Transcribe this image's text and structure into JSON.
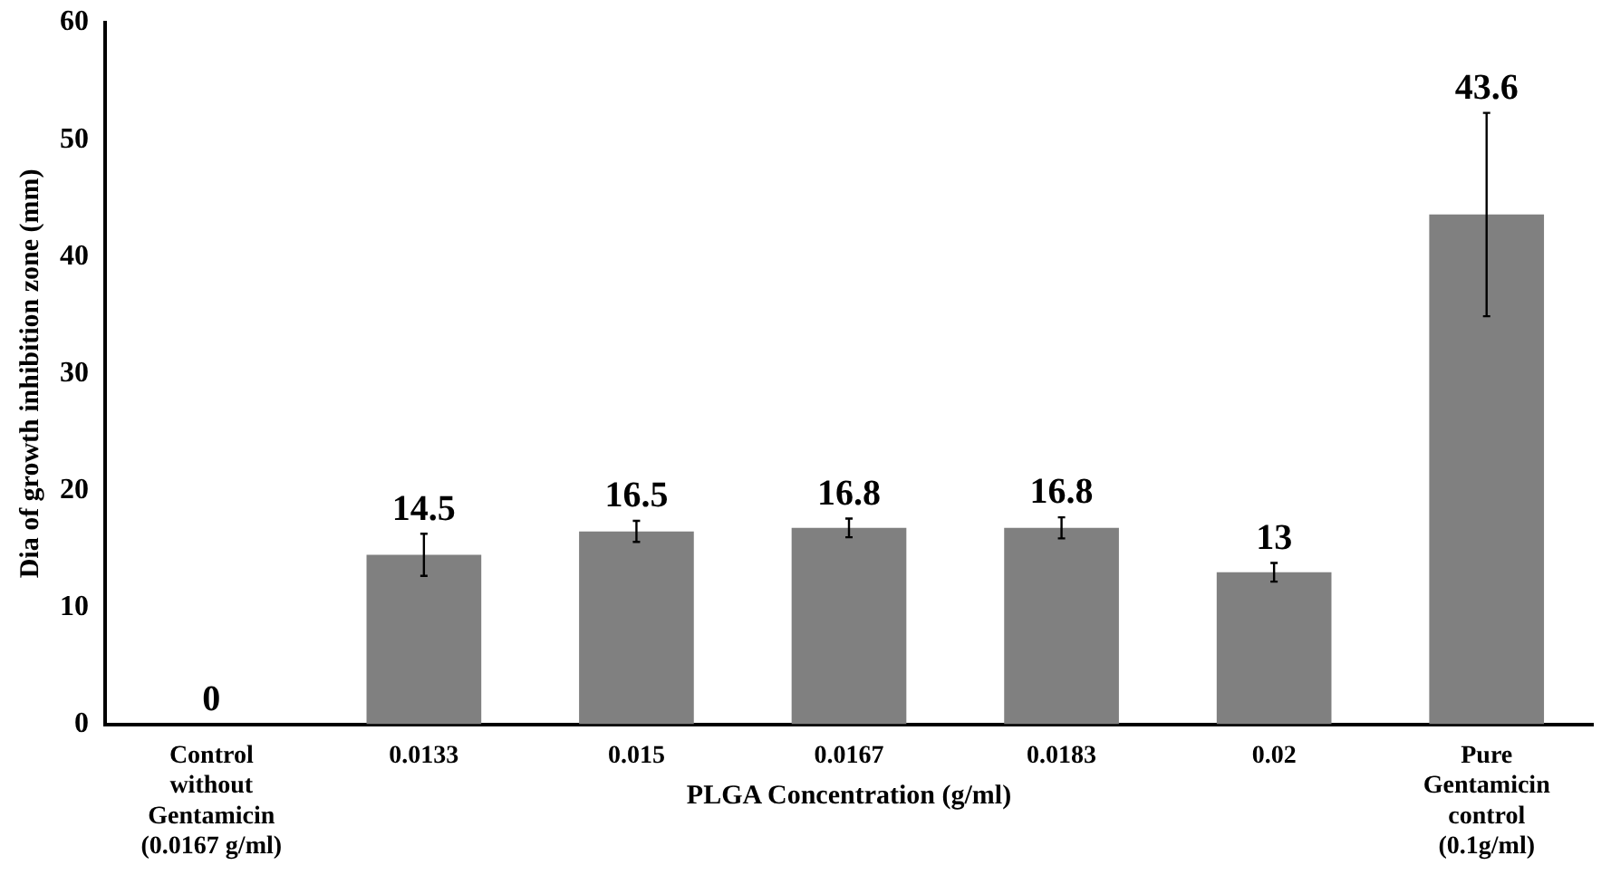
{
  "chart_data": {
    "type": "bar",
    "xlabel": "PLGA Concentration (g/ml)",
    "ylabel": "Dia of growth inhibition zone (mm)",
    "categories": [
      "Control without Gentamicin (0.0167 g/ml)",
      "0.0133",
      "0.015",
      "0.0167",
      "0.0183",
      "0.02",
      "Pure Gentamicin control (0.1g/ml)"
    ],
    "values": [
      0,
      14.5,
      16.5,
      16.8,
      16.8,
      13,
      43.6
    ],
    "errors": [
      null,
      1.8,
      0.9,
      0.8,
      0.9,
      0.8,
      8.7
    ],
    "color": "#808080",
    "data_labels": true,
    "ylim": [
      0,
      60
    ],
    "yticks": [
      0,
      10,
      20,
      30,
      40,
      50,
      60
    ],
    "grid": false,
    "legend": false
  }
}
